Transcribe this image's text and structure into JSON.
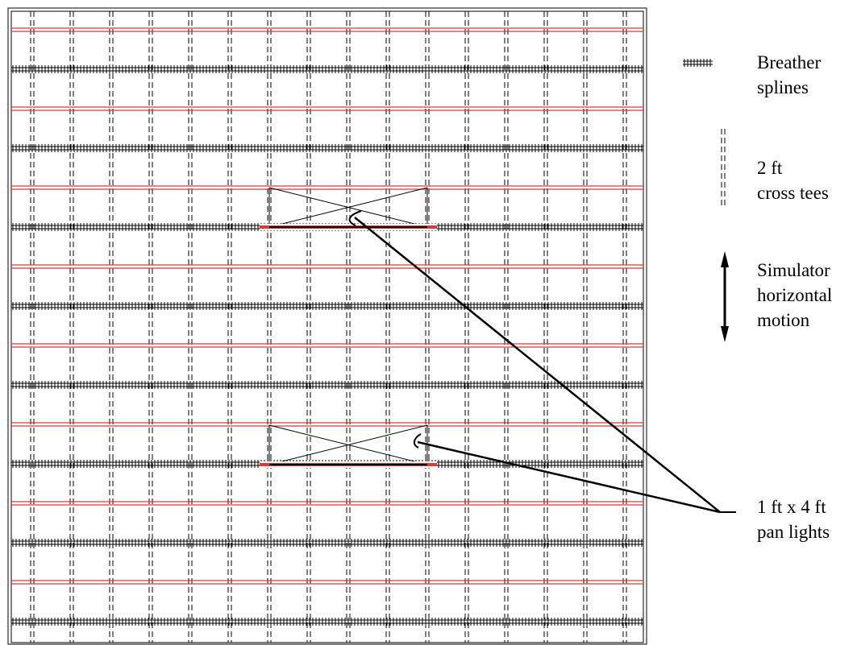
{
  "legend": {
    "breather": {
      "line1": "Breather",
      "line2": "splines"
    },
    "cross_tee": {
      "line1": "2 ft",
      "line2": "cross tees"
    },
    "motion": {
      "line1": "Simulator",
      "line2": "horizontal",
      "line3": "motion"
    },
    "pan_lights": {
      "line1": "1 ft x 4 ft",
      "line2": "pan lights"
    }
  },
  "colors": {
    "main_tee": "#d63a3a",
    "line": "#000000"
  }
}
